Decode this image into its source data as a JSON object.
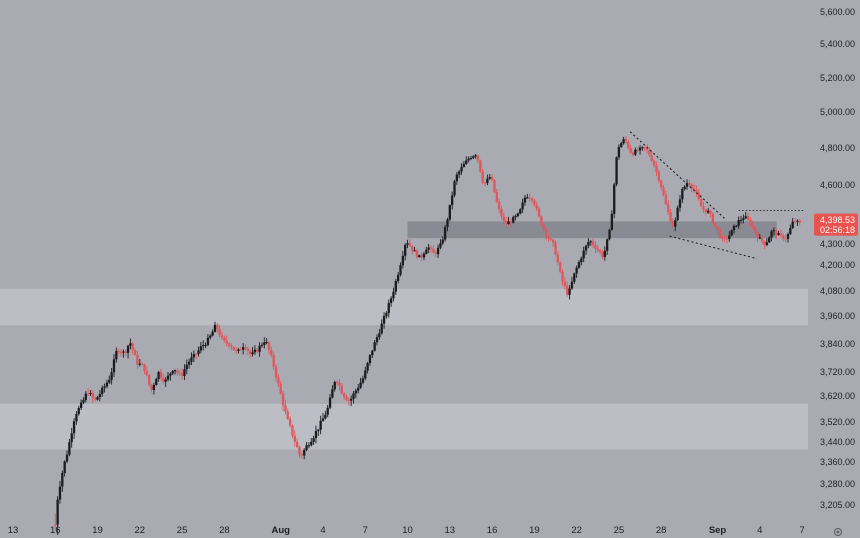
{
  "colors": {
    "background": "#a9aab2",
    "zone_band": "#bdbec5",
    "resistance_band": "#84868e",
    "candle_up": "#1b1c20",
    "candle_down": "#e0565a",
    "price_tag": "#e8524f",
    "text": "#1f2125"
  },
  "chart_data": {
    "type": "candlestick",
    "ylim": [
      3150,
      5700
    ],
    "x_range": [
      -3,
      52
    ],
    "y_ticks": [
      "5,600.00",
      "5,400.00",
      "5,200.00",
      "5,000.00",
      "4,800.00",
      "4,600.00",
      "4,300.00",
      "4,200.00",
      "4,080.00",
      "3,960.00",
      "3,840.00",
      "3,720.00",
      "3,620.00",
      "3,520.00",
      "3,440.00",
      "3,360.00",
      "3,280.00",
      "3,205.00"
    ],
    "y_tick_values": [
      5600,
      5400,
      5200,
      5000,
      4800,
      4600,
      4300,
      4200,
      4080,
      3960,
      3840,
      3720,
      3620,
      3520,
      3440,
      3360,
      3280,
      3205
    ],
    "x_ticks": [
      {
        "label": "13",
        "day": -3
      },
      {
        "label": "16",
        "day": 0
      },
      {
        "label": "19",
        "day": 3
      },
      {
        "label": "22",
        "day": 6
      },
      {
        "label": "25",
        "day": 9
      },
      {
        "label": "28",
        "day": 12
      },
      {
        "label": "Aug",
        "day": 16,
        "bold": true
      },
      {
        "label": "4",
        "day": 19
      },
      {
        "label": "7",
        "day": 22
      },
      {
        "label": "10",
        "day": 25
      },
      {
        "label": "13",
        "day": 28
      },
      {
        "label": "16",
        "day": 31
      },
      {
        "label": "19",
        "day": 34
      },
      {
        "label": "22",
        "day": 37
      },
      {
        "label": "25",
        "day": 40
      },
      {
        "label": "28",
        "day": 43
      },
      {
        "label": "Sep",
        "day": 47,
        "bold": true
      },
      {
        "label": "4",
        "day": 50
      },
      {
        "label": "7",
        "day": 53
      }
    ],
    "zones": [
      {
        "from": 3920,
        "to": 4090,
        "kind": "support"
      },
      {
        "from": 3410,
        "to": 3590,
        "kind": "support"
      },
      {
        "from": 4330,
        "to": 4415,
        "kind": "resistance",
        "x_start": 25,
        "x_end": 51.2
      }
    ],
    "dotted_lines": [
      {
        "x1": 40.8,
        "y1": 4890,
        "x2": 47.5,
        "y2": 4430
      },
      {
        "x1": 43.6,
        "y1": 4340,
        "x2": 49.8,
        "y2": 4230
      },
      {
        "x1": 48.5,
        "y1": 4470,
        "x2": 53.2,
        "y2": 4470
      }
    ],
    "path_points": [
      [
        0,
        3180
      ],
      [
        0.4,
        3300
      ],
      [
        0.9,
        3410
      ],
      [
        1.4,
        3550
      ],
      [
        1.8,
        3580
      ],
      [
        2.3,
        3640
      ],
      [
        2.8,
        3600
      ],
      [
        3.4,
        3650
      ],
      [
        3.9,
        3700
      ],
      [
        4.4,
        3820
      ],
      [
        4.9,
        3800
      ],
      [
        5.3,
        3850
      ],
      [
        5.8,
        3760
      ],
      [
        6.3,
        3740
      ],
      [
        6.8,
        3640
      ],
      [
        7.3,
        3720
      ],
      [
        7.8,
        3680
      ],
      [
        8.4,
        3740
      ],
      [
        8.9,
        3700
      ],
      [
        9.4,
        3760
      ],
      [
        9.9,
        3790
      ],
      [
        10.4,
        3830
      ],
      [
        10.9,
        3860
      ],
      [
        11.4,
        3920
      ],
      [
        11.9,
        3850
      ],
      [
        12.4,
        3840
      ],
      [
        12.9,
        3800
      ],
      [
        13.4,
        3840
      ],
      [
        13.9,
        3790
      ],
      [
        14.4,
        3820
      ],
      [
        14.9,
        3860
      ],
      [
        15.4,
        3770
      ],
      [
        15.9,
        3650
      ],
      [
        16.4,
        3540
      ],
      [
        16.9,
        3460
      ],
      [
        17.4,
        3380
      ],
      [
        17.9,
        3430
      ],
      [
        18.4,
        3470
      ],
      [
        18.9,
        3520
      ],
      [
        19.4,
        3580
      ],
      [
        19.9,
        3700
      ],
      [
        20.4,
        3630
      ],
      [
        20.9,
        3600
      ],
      [
        21.4,
        3650
      ],
      [
        21.9,
        3700
      ],
      [
        22.4,
        3800
      ],
      [
        22.9,
        3880
      ],
      [
        23.4,
        3960
      ],
      [
        23.9,
        4060
      ],
      [
        24.4,
        4180
      ],
      [
        24.9,
        4320
      ],
      [
        25.4,
        4270
      ],
      [
        25.9,
        4230
      ],
      [
        26.4,
        4290
      ],
      [
        26.9,
        4250
      ],
      [
        27.4,
        4300
      ],
      [
        27.9,
        4450
      ],
      [
        28.4,
        4640
      ],
      [
        28.9,
        4700
      ],
      [
        29.4,
        4750
      ],
      [
        29.9,
        4770
      ],
      [
        30.4,
        4600
      ],
      [
        30.9,
        4650
      ],
      [
        31.4,
        4490
      ],
      [
        31.9,
        4400
      ],
      [
        32.4,
        4420
      ],
      [
        32.9,
        4450
      ],
      [
        33.4,
        4550
      ],
      [
        33.9,
        4530
      ],
      [
        34.4,
        4420
      ],
      [
        34.9,
        4340
      ],
      [
        35.4,
        4290
      ],
      [
        35.9,
        4140
      ],
      [
        36.4,
        4060
      ],
      [
        36.9,
        4170
      ],
      [
        37.4,
        4250
      ],
      [
        37.9,
        4320
      ],
      [
        38.4,
        4280
      ],
      [
        38.9,
        4240
      ],
      [
        39.4,
        4380
      ],
      [
        39.9,
        4800
      ],
      [
        40.4,
        4850
      ],
      [
        40.9,
        4770
      ],
      [
        41.4,
        4790
      ],
      [
        41.9,
        4800
      ],
      [
        42.4,
        4730
      ],
      [
        42.9,
        4620
      ],
      [
        43.4,
        4480
      ],
      [
        43.9,
        4380
      ],
      [
        44.4,
        4560
      ],
      [
        44.9,
        4620
      ],
      [
        45.4,
        4570
      ],
      [
        45.9,
        4480
      ],
      [
        46.4,
        4460
      ],
      [
        46.9,
        4380
      ],
      [
        47.4,
        4310
      ],
      [
        47.9,
        4350
      ],
      [
        48.4,
        4410
      ],
      [
        48.9,
        4440
      ],
      [
        49.4,
        4400
      ],
      [
        49.9,
        4330
      ],
      [
        50.4,
        4300
      ],
      [
        50.9,
        4370
      ],
      [
        51.4,
        4340
      ],
      [
        51.9,
        4330
      ],
      [
        52.4,
        4420
      ],
      [
        52.9,
        4400
      ]
    ],
    "current_price": {
      "value": 4398.53,
      "label": "4,398.53",
      "countdown": "02:56:18"
    }
  }
}
